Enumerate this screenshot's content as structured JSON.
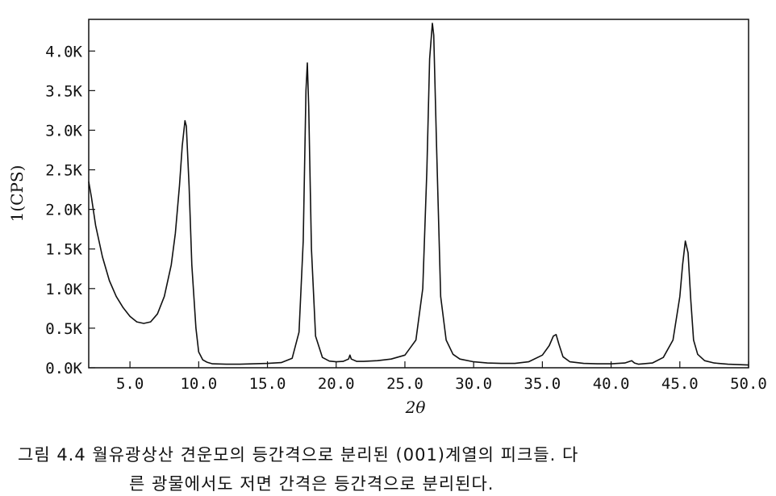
{
  "chart_data": {
    "type": "line",
    "xlabel": "2θ",
    "ylabel": "1(CPS)",
    "xlim": [
      2.0,
      50.0
    ],
    "ylim": [
      0,
      4400
    ],
    "x_ticks": [
      "5.0",
      "10.0",
      "15.0",
      "20.0",
      "25.0",
      "30.0",
      "35.0",
      "40.0",
      "45.0",
      "50.0"
    ],
    "x_tick_values": [
      5,
      10,
      15,
      20,
      25,
      30,
      35,
      40,
      45,
      50
    ],
    "y_ticks": [
      "0.0K",
      "0.5K",
      "1.0K",
      "1.5K",
      "2.0K",
      "2.5K",
      "3.0K",
      "3.5K",
      "4.0K"
    ],
    "y_tick_values": [
      0,
      500,
      1000,
      1500,
      2000,
      2500,
      3000,
      3500,
      4000
    ],
    "grid": false,
    "series": [
      {
        "color": "#111111",
        "x": [
          2.0,
          2.2,
          2.5,
          3.0,
          3.5,
          4.0,
          4.5,
          5.0,
          5.5,
          6.0,
          6.5,
          7.0,
          7.5,
          8.0,
          8.3,
          8.6,
          8.8,
          9.0,
          9.1,
          9.3,
          9.5,
          9.8,
          10.0,
          10.3,
          10.6,
          11.0,
          12.0,
          13.0,
          14.0,
          15.0,
          16.0,
          16.8,
          17.3,
          17.6,
          17.8,
          17.9,
          18.0,
          18.2,
          18.5,
          19.0,
          19.5,
          20.0,
          20.5,
          20.9,
          21.0,
          21.1,
          21.5,
          22.0,
          23.0,
          24.0,
          25.0,
          25.8,
          26.3,
          26.6,
          26.8,
          27.0,
          27.1,
          27.3,
          27.6,
          28.0,
          28.5,
          29.0,
          30.0,
          31.0,
          32.0,
          33.0,
          34.0,
          35.0,
          35.5,
          35.8,
          36.0,
          36.2,
          36.5,
          37.0,
          38.0,
          39.0,
          40.0,
          41.0,
          41.5,
          41.7,
          42.0,
          43.0,
          43.8,
          44.5,
          45.0,
          45.2,
          45.4,
          45.6,
          45.8,
          46.0,
          46.3,
          46.8,
          47.5,
          48.5,
          50.0
        ],
        "y": [
          2350,
          2150,
          1800,
          1400,
          1100,
          900,
          760,
          650,
          580,
          560,
          580,
          680,
          900,
          1300,
          1700,
          2300,
          2800,
          3120,
          3050,
          2300,
          1300,
          500,
          200,
          100,
          70,
          50,
          45,
          45,
          50,
          55,
          65,
          120,
          450,
          1600,
          3500,
          3850,
          3300,
          1500,
          400,
          130,
          85,
          75,
          80,
          110,
          160,
          110,
          80,
          80,
          90,
          110,
          160,
          350,
          1000,
          2500,
          3900,
          4350,
          4200,
          2800,
          900,
          350,
          170,
          110,
          75,
          60,
          55,
          55,
          75,
          160,
          280,
          400,
          420,
          300,
          140,
          75,
          55,
          50,
          50,
          60,
          90,
          60,
          45,
          60,
          130,
          350,
          900,
          1300,
          1600,
          1450,
          850,
          350,
          170,
          90,
          60,
          45,
          35
        ]
      }
    ]
  },
  "caption": {
    "line1": "그림 4.4  월유광상산 견운모의 등간격으로 분리된 (001)계열의 피크들. 다",
    "line2": "른 광물에서도 저면 간격은 등간격으로 분리된다."
  }
}
